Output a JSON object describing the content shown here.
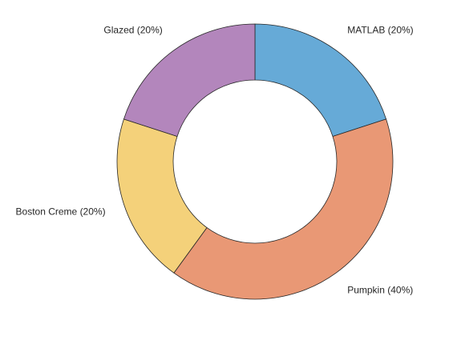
{
  "chart_data": {
    "type": "pie",
    "variant": "donut",
    "categories": [
      "MATLAB",
      "Pumpkin",
      "Boston Creme",
      "Glazed"
    ],
    "values": [
      20,
      40,
      20,
      20
    ],
    "labels": [
      "MATLAB (20%)",
      "Pumpkin (40%)",
      "Boston Creme (20%)",
      "Glazed (20%)"
    ],
    "colors": [
      "#66AAD7",
      "#E99875",
      "#F4D17A",
      "#B386BC"
    ],
    "edge_color": "#262626",
    "start": "top",
    "direction": "clockwise",
    "title": "",
    "legend": "none"
  }
}
